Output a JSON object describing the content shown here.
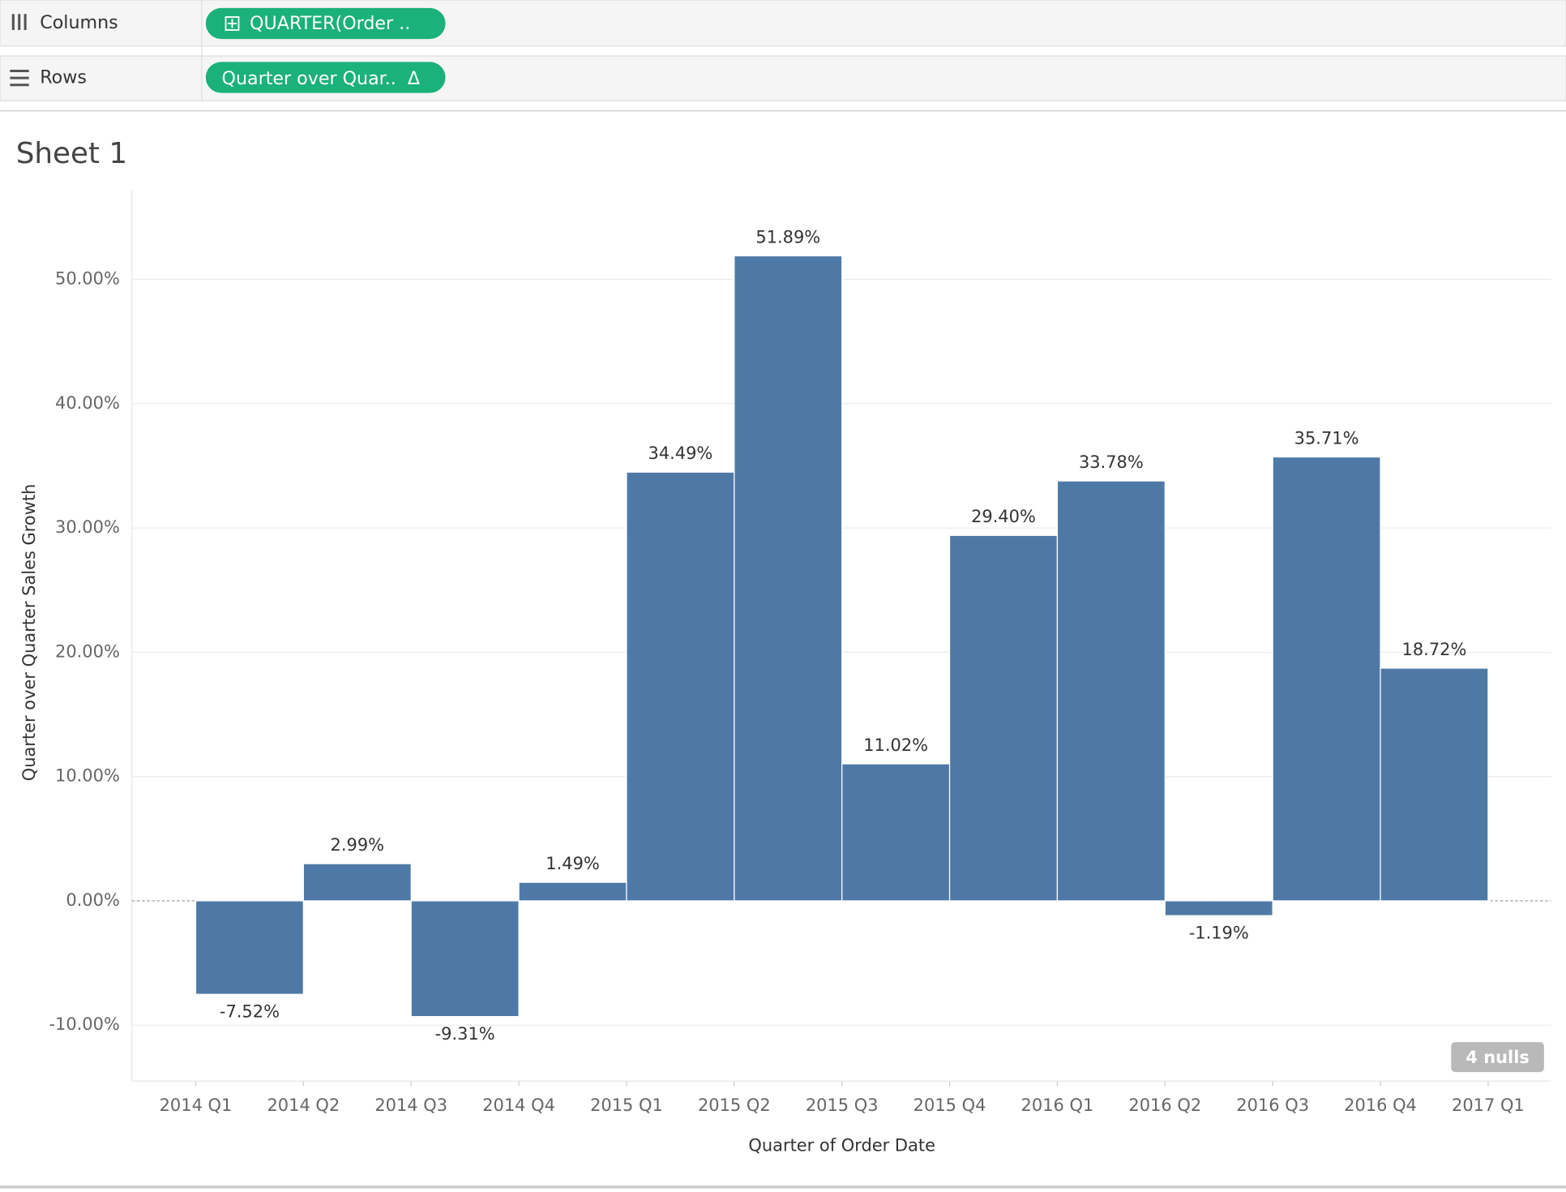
{
  "shelves": {
    "columns": {
      "label": "Columns",
      "pill": "QUARTER(Order .."
    },
    "rows": {
      "label": "Rows",
      "pill": "Quarter over Quar..  Δ"
    }
  },
  "chart_data": {
    "type": "bar",
    "title": "Sheet 1",
    "ylabel": "Quarter over Quarter Sales Growth",
    "xlabel": "Quarter of Order Date",
    "xticks": [
      "2014 Q1",
      "2014 Q2",
      "2014 Q3",
      "2014 Q4",
      "2015 Q1",
      "2015 Q2",
      "2015 Q3",
      "2015 Q4",
      "2016 Q1",
      "2016 Q2",
      "2016 Q3",
      "2016 Q4",
      "2017 Q1"
    ],
    "values": [
      -7.52,
      2.99,
      -9.31,
      1.49,
      34.49,
      51.89,
      11.02,
      29.4,
      33.78,
      -1.19,
      35.71,
      18.72
    ],
    "value_labels": [
      "-7.52%",
      "2.99%",
      "-9.31%",
      "1.49%",
      "34.49%",
      "51.89%",
      "11.02%",
      "29.40%",
      "33.78%",
      "-1.19%",
      "35.71%",
      "18.72%"
    ],
    "color": "#4e79a7",
    "ylim": [
      -14.5,
      57.2
    ],
    "yticks": [
      {
        "value": -10,
        "label": "-10.00%"
      },
      {
        "value": 0,
        "label": "0.00%"
      },
      {
        "value": 10,
        "label": "10.00%"
      },
      {
        "value": 20,
        "label": "20.00%"
      },
      {
        "value": 30,
        "label": "30.00%"
      },
      {
        "value": 40,
        "label": "40.00%"
      },
      {
        "value": 50,
        "label": "50.00%"
      }
    ],
    "grid": true,
    "badge": "4 nulls"
  }
}
